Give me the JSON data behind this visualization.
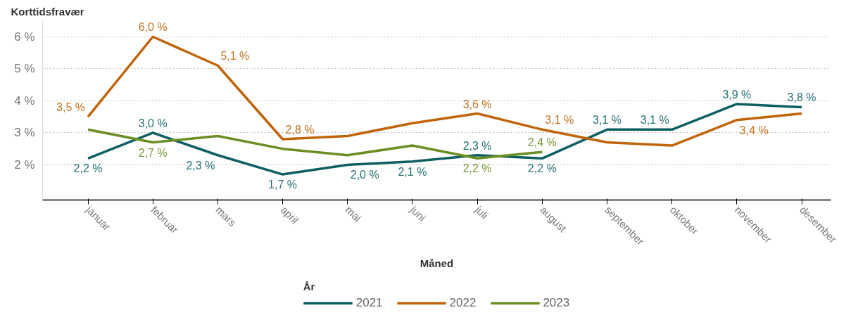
{
  "chart_data": {
    "type": "line",
    "ylabel": "Korttidsfravær",
    "xlabel": "Måned",
    "legend_title": "År",
    "categories": [
      "januar",
      "februar",
      "mars",
      "april",
      "mai",
      "juni",
      "juli",
      "august",
      "september",
      "oktober",
      "november",
      "desember"
    ],
    "series": [
      {
        "name": "2021",
        "color": "#0e5f63",
        "values": [
          2.2,
          3.0,
          2.3,
          1.7,
          2.0,
          2.1,
          2.3,
          2.2,
          3.1,
          3.1,
          3.9,
          3.8
        ],
        "value_labels": [
          "2,2 %",
          "3,0 %",
          "2,3 %",
          "1,7 %",
          "2,0 %",
          "2,1 %",
          "2,3 %",
          "2,2 %",
          "3,1 %",
          "3,1 %",
          "3,9 %",
          "3,8 %"
        ]
      },
      {
        "name": "2022",
        "color": "#c0640a",
        "values": [
          3.5,
          6.0,
          5.1,
          2.8,
          2.9,
          3.3,
          3.6,
          3.1,
          2.7,
          2.6,
          3.4,
          3.6
        ],
        "value_labels": [
          "3,5 %",
          "6,0 %",
          "5,1 %",
          "2,8 %",
          null,
          null,
          "3,6 %",
          "3,1 %",
          null,
          null,
          "3,4 %",
          null
        ]
      },
      {
        "name": "2023",
        "color": "#6b8e23",
        "values": [
          3.1,
          2.7,
          2.9,
          2.5,
          2.3,
          2.6,
          2.2,
          2.4,
          null,
          null,
          null,
          null
        ],
        "value_labels": [
          null,
          "2,7 %",
          null,
          null,
          null,
          null,
          "2,2 %",
          "2,4 %",
          null,
          null,
          null,
          null
        ]
      }
    ],
    "ylim": [
      0.9,
      6.5
    ],
    "yticks": [
      {
        "value": 2,
        "label": "2 %"
      },
      {
        "value": 3,
        "label": "3 %"
      },
      {
        "value": 4,
        "label": "4 %"
      },
      {
        "value": 5,
        "label": "5 %"
      },
      {
        "value": 6,
        "label": "6 %"
      }
    ],
    "grid": "y",
    "legend": "bottom",
    "marker": "none",
    "line_style": "solid"
  }
}
